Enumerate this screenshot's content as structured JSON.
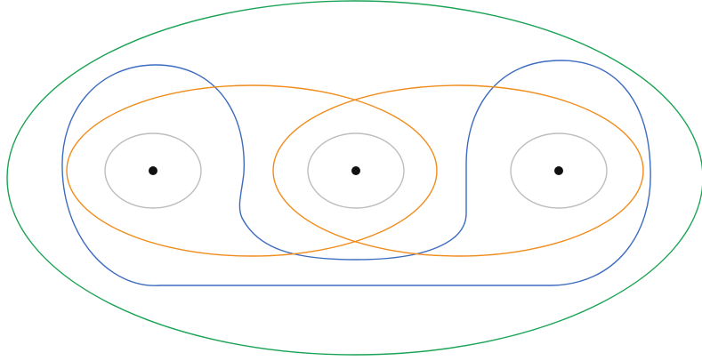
{
  "figure": {
    "description_visible_text": "",
    "colors": {
      "background": "#ffffff",
      "outer_boundary": "#1aa354",
      "orange_curves": "#f08c1c",
      "blue_curve": "#3d6cbf",
      "gray_circles": "#bdbdbd",
      "punctures": "#111111"
    },
    "punctures_count": 3,
    "orange_curves_count": 2,
    "gray_circles_count": 3
  }
}
